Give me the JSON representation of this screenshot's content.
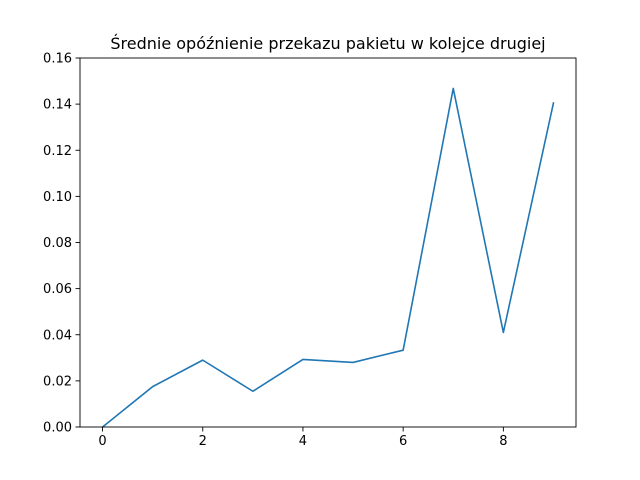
{
  "chart_data": {
    "type": "line",
    "title": "Średnie opóźnienie przekazu pakietu w kolejce drugiej",
    "xlabel": "",
    "ylabel": "",
    "xlim": [
      -0.45,
      9.45
    ],
    "ylim": [
      0,
      0.16
    ],
    "xticks": [
      0,
      2,
      4,
      6,
      8
    ],
    "xtick_labels": [
      "0",
      "2",
      "4",
      "6",
      "8"
    ],
    "yticks": [
      0,
      0.02,
      0.04,
      0.06,
      0.08,
      0.1,
      0.12,
      0.14,
      0.16
    ],
    "ytick_labels": [
      "0.00",
      "0.02",
      "0.04",
      "0.06",
      "0.08",
      "0.10",
      "0.12",
      "0.14",
      "0.16"
    ],
    "grid": false,
    "series": [
      {
        "color": "#1f77b4",
        "x": [
          0,
          1,
          2,
          3,
          4,
          5,
          6,
          7,
          8,
          9
        ],
        "y": [
          0.0,
          0.0175,
          0.029,
          0.0155,
          0.0293,
          0.028,
          0.0333,
          0.1468,
          0.041,
          0.1405
        ]
      }
    ]
  }
}
